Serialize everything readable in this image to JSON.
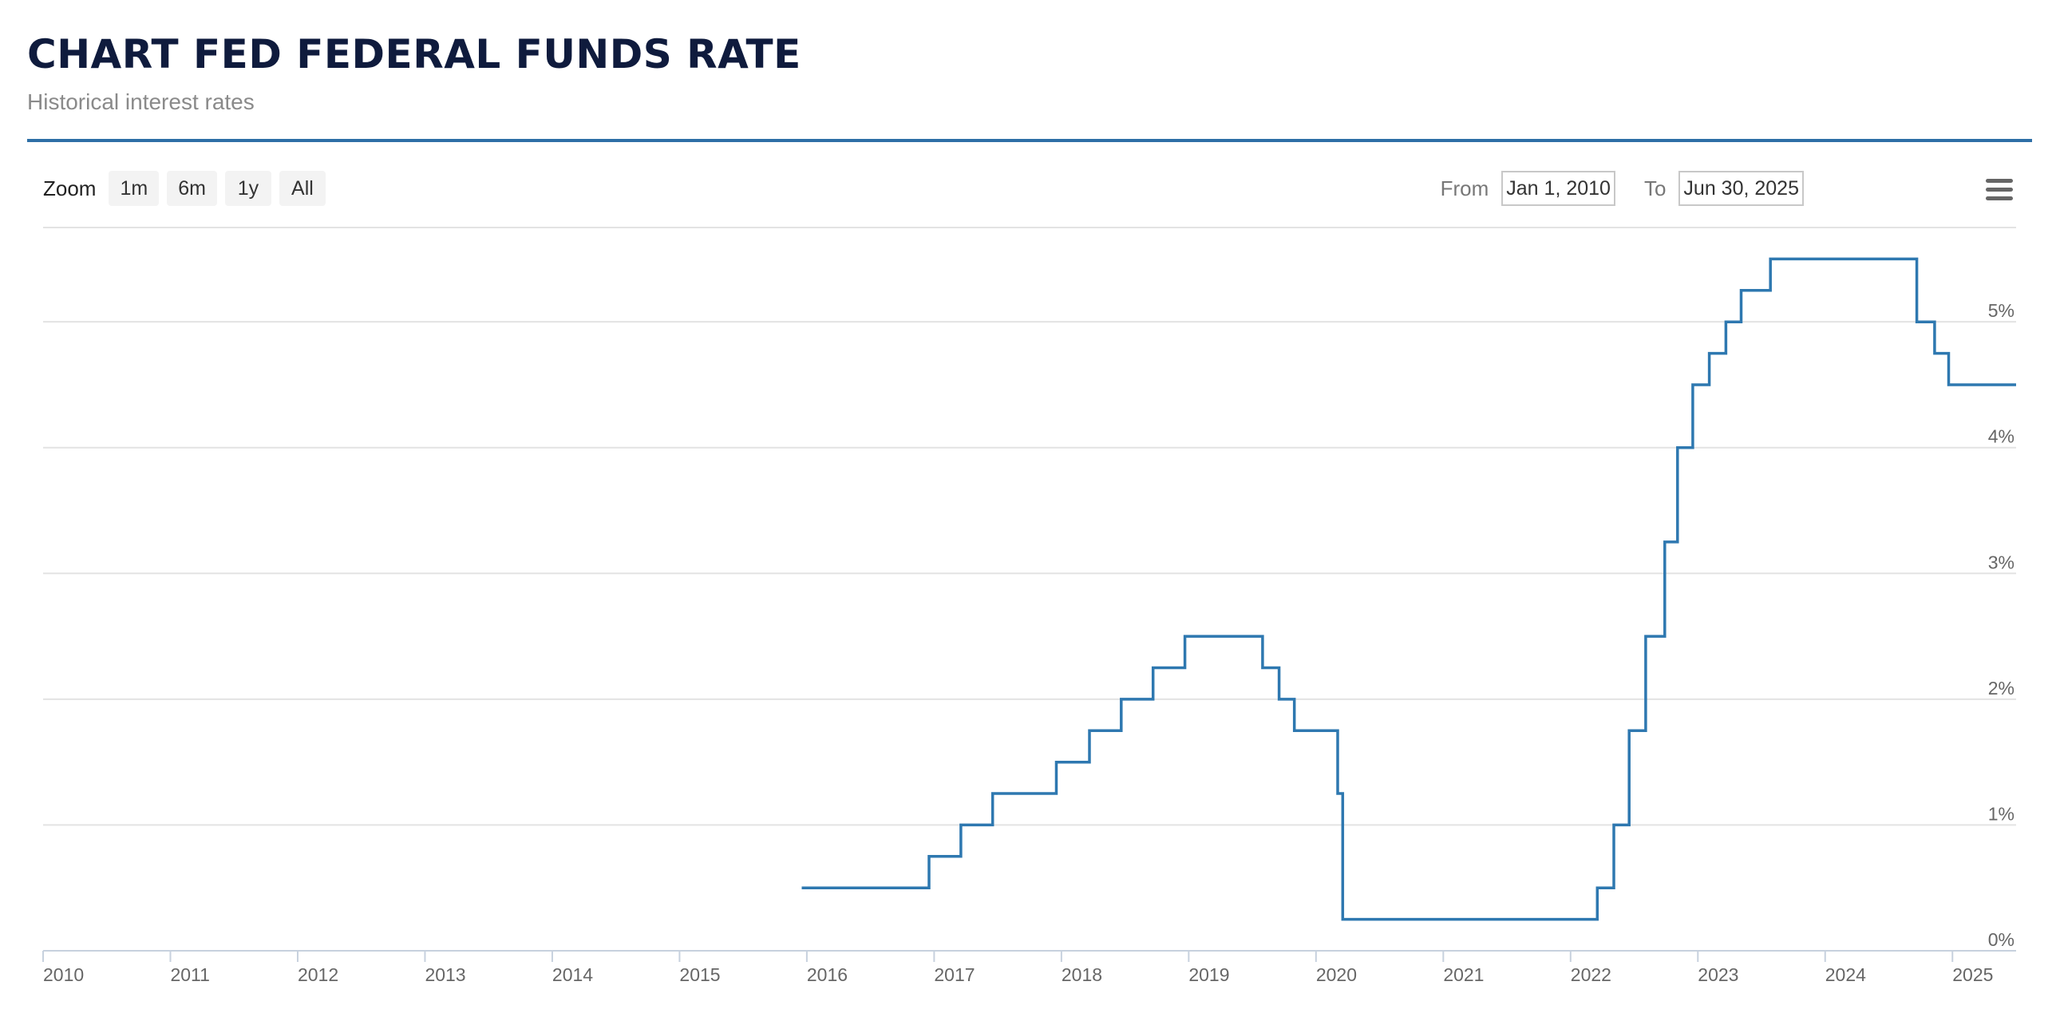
{
  "header": {
    "title": "CHART FED FEDERAL FUNDS RATE",
    "subtitle": "Historical interest rates"
  },
  "toolbar": {
    "zoom_label": "Zoom",
    "zoom_buttons": [
      "1m",
      "6m",
      "1y",
      "All"
    ],
    "from_label": "From",
    "from_value": "Jan 1, 2010",
    "to_label": "To",
    "to_value": "Jun 30, 2025",
    "menu_icon": "hamburger-menu-icon"
  },
  "colors": {
    "line": "#2e78b0",
    "grid": "#e3e3e3",
    "rule": "#2e6fa6"
  },
  "chart_data": {
    "type": "line",
    "step": true,
    "title": "",
    "xlabel": "",
    "ylabel": "",
    "xlim": [
      2010.0,
      2025.5
    ],
    "ylim": [
      0,
      5.75
    ],
    "x_ticks": [
      "2010",
      "2011",
      "2012",
      "2013",
      "2014",
      "2015",
      "2016",
      "2017",
      "2018",
      "2019",
      "2020",
      "2021",
      "2022",
      "2023",
      "2024",
      "2025"
    ],
    "y_ticks": [
      "0%",
      "1%",
      "2%",
      "3%",
      "4%",
      "5%"
    ],
    "grid": true,
    "series": [
      {
        "points": [
          [
            2015.96,
            0.5
          ],
          [
            2016.96,
            0.75
          ],
          [
            2017.21,
            1.0
          ],
          [
            2017.46,
            1.25
          ],
          [
            2017.96,
            1.5
          ],
          [
            2018.22,
            1.75
          ],
          [
            2018.47,
            2.0
          ],
          [
            2018.72,
            2.25
          ],
          [
            2018.97,
            2.5
          ],
          [
            2019.58,
            2.25
          ],
          [
            2019.71,
            2.0
          ],
          [
            2019.83,
            1.75
          ],
          [
            2020.17,
            1.25
          ],
          [
            2020.21,
            0.25
          ],
          [
            2022.21,
            0.5
          ],
          [
            2022.34,
            1.0
          ],
          [
            2022.46,
            1.75
          ],
          [
            2022.59,
            2.5
          ],
          [
            2022.74,
            3.25
          ],
          [
            2022.84,
            4.0
          ],
          [
            2022.96,
            4.5
          ],
          [
            2023.09,
            4.75
          ],
          [
            2023.22,
            5.0
          ],
          [
            2023.34,
            5.25
          ],
          [
            2023.57,
            5.5
          ],
          [
            2024.72,
            5.0
          ],
          [
            2024.86,
            4.75
          ],
          [
            2024.97,
            4.5
          ],
          [
            2025.5,
            4.5
          ]
        ]
      }
    ]
  }
}
